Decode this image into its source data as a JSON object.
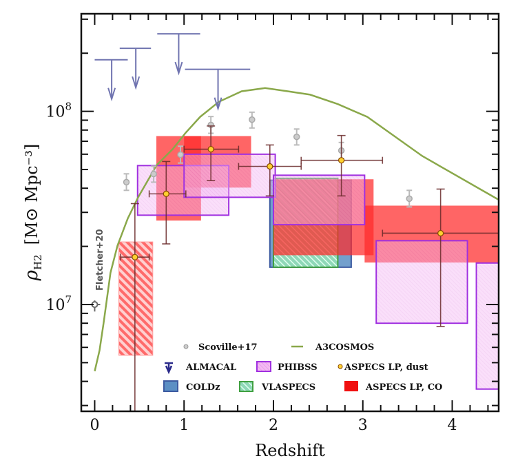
{
  "chart_data": {
    "type": "scatter",
    "xlabel": "Redshift",
    "ylabel": "ρ",
    "ylabel_sub": "H2",
    "ylabel_units": "[M⊙ Mpc⁻³]",
    "xlim": [
      -0.15,
      4.52
    ],
    "ylim": [
      2800000.0,
      320000000.0
    ],
    "yscale": "log",
    "grid": false,
    "legend_placement": "bottom-center",
    "x_ticks": [
      {
        "value": 0,
        "label": "0"
      },
      {
        "value": 1,
        "label": "1"
      },
      {
        "value": 2,
        "label": "2"
      },
      {
        "value": 3,
        "label": "3"
      },
      {
        "value": 4,
        "label": "4"
      }
    ],
    "y_ticks": [
      {
        "value": 10000000.0,
        "base": "10",
        "exp": "7"
      },
      {
        "value": 100000000.0,
        "base": "10",
        "exp": "8"
      }
    ],
    "colors": {
      "aspecs_co": "#ff2a2a",
      "phibss_fill": "#f0a8f0",
      "phibss_edge": "#a030e0",
      "coldz_fill": "#5b8fc4",
      "coldz_edge": "#3c5aa0",
      "vlaspecs_fill": "#70c8a0",
      "vlaspecs_edge": "#40a040",
      "almacal": "#7074b0",
      "a3cosmos": "#8aa84a",
      "scoville": "#aaaaaa",
      "dust_point": "#ffd030",
      "dust_err": "#6a2a2a"
    },
    "legend": [
      {
        "name": "Scoville+17",
        "symbol": "grey-circle"
      },
      {
        "name": "A3COSMOS",
        "symbol": "green-line"
      },
      {
        "name": "ALMACAL",
        "symbol": "upper-limit-arrow"
      },
      {
        "name": "PHIBSS",
        "symbol": "pink-hatched-box"
      },
      {
        "name": "ASPECS LP, dust",
        "symbol": "yellow-circle"
      },
      {
        "name": "COLDz",
        "symbol": "blue-box"
      },
      {
        "name": "VLASPECS",
        "symbol": "green-hatched-box"
      },
      {
        "name": "ASPECS LP, CO",
        "symbol": "red-box"
      }
    ],
    "annotation": "Fletcher+20",
    "coldz_boxes": [
      {
        "z": [
          1.96,
          2.87
        ],
        "rho": [
          15600000.0,
          44000000.0
        ]
      }
    ],
    "vlaspecs_boxes": [
      {
        "z": [
          2.0,
          2.72
        ],
        "rho": [
          15600000.0,
          45000000.0
        ]
      }
    ],
    "aspecs_co_boxes": [
      {
        "z": [
          0.27,
          0.65
        ],
        "rho": [
          5460000.0,
          21100000.0
        ],
        "hatched": true
      },
      {
        "z": [
          0.69,
          1.19
        ],
        "rho": [
          27200000.0,
          74500000.0
        ]
      },
      {
        "z": [
          1.0,
          1.75
        ],
        "rho": [
          40300000.0,
          74500000.0
        ]
      },
      {
        "z": [
          2.0,
          3.12
        ],
        "rho": [
          18000000.0,
          44500000.0
        ]
      },
      {
        "z": [
          3.02,
          4.52
        ],
        "rho": [
          16500000.0,
          32500000.0
        ]
      }
    ],
    "phibss_boxes": [
      {
        "z": [
          0.48,
          1.5
        ],
        "rho": [
          29000000.0,
          52400000.0
        ]
      },
      {
        "z": [
          1.0,
          2.02
        ],
        "rho": [
          35900000.0,
          60000000.0
        ]
      },
      {
        "z": [
          2.0,
          3.02
        ],
        "rho": [
          25900000.0,
          46700000.0
        ]
      },
      {
        "z": [
          3.15,
          4.17
        ],
        "rho": [
          8000000.0,
          21400000.0
        ]
      },
      {
        "z": [
          4.27,
          4.6
        ],
        "rho": [
          3650000.0,
          16400000.0
        ]
      }
    ],
    "almacal_limits": [
      {
        "z": 0.19,
        "zrange": [
          0.0,
          0.37
        ],
        "rho": 185000000.0
      },
      {
        "z": 0.46,
        "zrange": [
          0.28,
          0.63
        ],
        "rho": 212000000.0
      },
      {
        "z": 0.94,
        "zrange": [
          0.7,
          1.18
        ],
        "rho": 252000000.0
      },
      {
        "z": 1.38,
        "zrange": [
          1.01,
          1.74
        ],
        "rho": 165000000.0
      }
    ],
    "scoville": [
      {
        "z": 0.355,
        "rho": 43000000.0,
        "rho_err": [
          39000000.0,
          47500000.0
        ]
      },
      {
        "z": 0.66,
        "rho": 47400000.0,
        "rho_err": [
          43000000.0,
          52000000.0
        ]
      },
      {
        "z": 0.96,
        "rho": 59700000.0,
        "rho_err": [
          54000000.0,
          66000000.0
        ]
      },
      {
        "z": 1.3,
        "rho": 85000000.0,
        "rho_err": [
          77000000.0,
          94000000.0
        ]
      },
      {
        "z": 1.76,
        "rho": 90600000.0,
        "rho_err": [
          82000000.0,
          99000000.0
        ]
      },
      {
        "z": 2.26,
        "rho": 73800000.0,
        "rho_err": [
          67000000.0,
          81000000.0
        ]
      },
      {
        "z": 2.76,
        "rho": 62700000.0,
        "rho_err": [
          57000000.0,
          69000000.0
        ]
      },
      {
        "z": 3.52,
        "rho": 35300000.0,
        "rho_err": [
          32000000.0,
          39000000.0
        ]
      }
    ],
    "fletcher": {
      "z": 0.0,
      "rho": 10000000.0,
      "rho_err": [
        9200000.0,
        10500000.0
      ]
    },
    "aspecs_dust": [
      {
        "z": 0.45,
        "rho": 17600000.0,
        "z_err": [
          0.29,
          0.61
        ],
        "rho_err": [
          1000000.0,
          33300000.0
        ]
      },
      {
        "z": 0.8,
        "rho": 37400000.0,
        "z_err": [
          0.61,
          1.02
        ],
        "rho_err": [
          20600000.0,
          55000000.0
        ]
      },
      {
        "z": 1.3,
        "rho": 63700000.0,
        "z_err": [
          1.0,
          1.61
        ],
        "rho_err": [
          43800000.0,
          84000000.0
        ]
      },
      {
        "z": 1.96,
        "rho": 51900000.0,
        "z_err": [
          1.61,
          2.31
        ],
        "rho_err": [
          36500000.0,
          67000000.0
        ]
      },
      {
        "z": 2.76,
        "rho": 55800000.0,
        "z_err": [
          2.31,
          3.22
        ],
        "rho_err": [
          36500000.0,
          75000000.0
        ]
      },
      {
        "z": 3.87,
        "rho": 23400000.0,
        "z_err": [
          3.22,
          4.6
        ],
        "rho_err": [
          7700000.0,
          39600000.0
        ]
      }
    ],
    "a3cosmos_curve": {
      "z": [
        0,
        0.054,
        0.1,
        0.177,
        0.255,
        0.37,
        0.486,
        0.694,
        0.872,
        1.019,
        1.18,
        1.389,
        1.644,
        1.906,
        2.16,
        2.41,
        2.72,
        3.05,
        3.665,
        4.514
      ],
      "rho": [
        4520000.0,
        5780000.0,
        8020000.0,
        14600000.0,
        20200000.0,
        27900000.0,
        35900000.0,
        52700000.0,
        63700000.0,
        77600000.0,
        93700000.0,
        112000000.0,
        127000000.0,
        132000000.0,
        127000000.0,
        122000000.0,
        109000000.0,
        93700000.0,
        58700000.0,
        35000000.0
      ]
    }
  }
}
